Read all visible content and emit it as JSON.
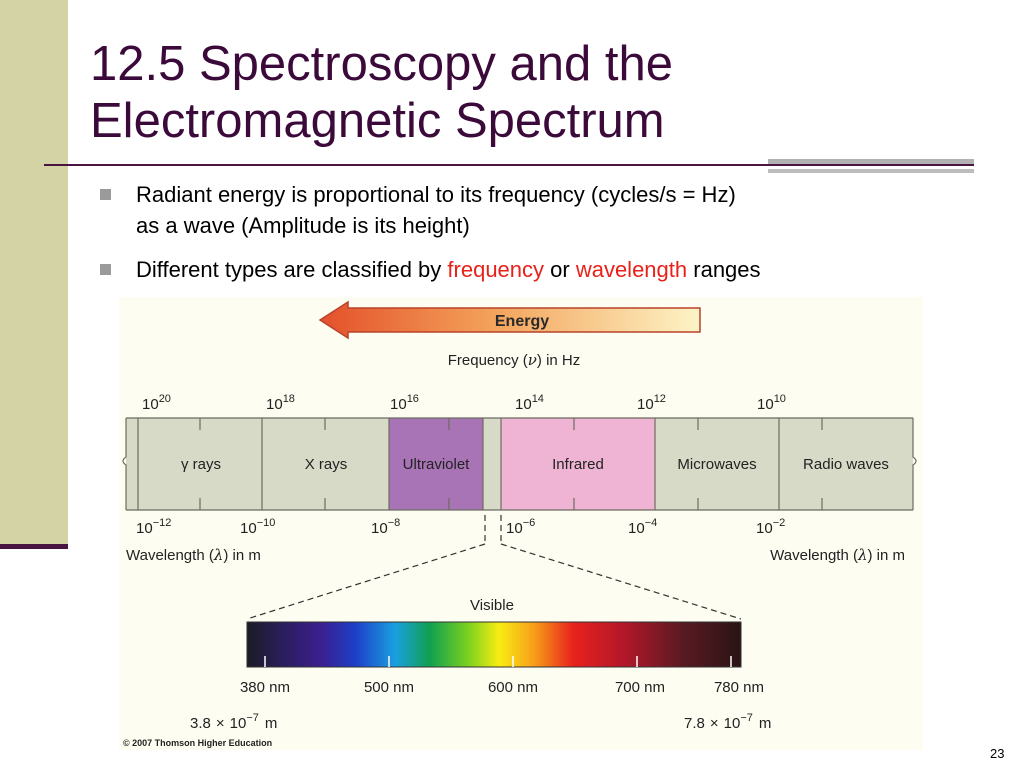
{
  "slide": {
    "title_line1": "12.5 Spectroscopy and the",
    "title_line2": "Electromagnetic Spectrum",
    "bullets": {
      "b1_line1": "Radiant energy is proportional to its frequency (cycles/s = Hz)",
      "b1_line2": "as a wave (Amplitude is its height)",
      "b2_pre": "Different types are classified by ",
      "b2_freq": "frequency",
      "b2_mid": " or ",
      "b2_wave": "wavelength",
      "b2_post": " ranges"
    },
    "page_number": "23",
    "accent_red": "#e8211a",
    "title_color": "#3b0a3a"
  },
  "figure": {
    "energy_label": "Energy",
    "frequency_label_pre": "Frequency (",
    "frequency_symbol": "ν",
    "frequency_label_post": ") in Hz",
    "frequency_ticks": {
      "base": "10",
      "exps": [
        "20",
        "18",
        "16",
        "14",
        "12",
        "10"
      ]
    },
    "regions": [
      {
        "label": "γ rays",
        "color": "#d8dac8"
      },
      {
        "label": "X rays",
        "color": "#d8dac8"
      },
      {
        "label": "Ultraviolet",
        "color": "#a874b6"
      },
      {
        "label": "",
        "color": "#d8dac8"
      },
      {
        "label": "Infrared",
        "color": "#efb3d3"
      },
      {
        "label": "Microwaves",
        "color": "#d8dac8"
      },
      {
        "label": "Radio waves",
        "color": "#d8dac8"
      }
    ],
    "wavelength_ticks": {
      "base": "10",
      "exps": [
        "−12",
        "−10",
        "−8",
        "−6",
        "−4",
        "−2"
      ]
    },
    "wavelength_label_pre": "Wavelength (",
    "wavelength_symbol": "λ",
    "wavelength_label_post": ") in m",
    "visible_label": "Visible",
    "visible_ticks_nm": [
      "380 nm",
      "500 nm",
      "600 nm",
      "700 nm",
      "780 nm"
    ],
    "visible_range_left": {
      "mantissa": "3.8",
      "exp": "−7",
      "unit": "m"
    },
    "visible_range_right": {
      "mantissa": "7.8",
      "exp": "−7",
      "unit": "m"
    },
    "times_symbol": "×",
    "copyright": "© 2007 Thomson Higher Education"
  }
}
